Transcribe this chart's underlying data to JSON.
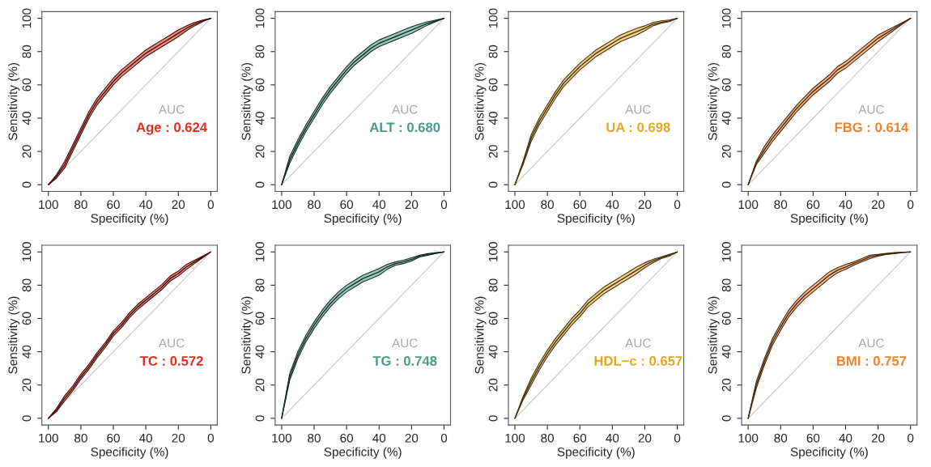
{
  "chart_data": [
    {
      "type": "line",
      "xlabel": "Specificity (%)",
      "ylabel": "Sensitivity (%)",
      "xlim": [
        104,
        -4
      ],
      "ylim": [
        -4,
        104
      ],
      "xticks": [
        100,
        80,
        60,
        40,
        20,
        0
      ],
      "yticks": [
        0,
        20,
        40,
        60,
        80,
        100
      ],
      "annotations": [
        "AUC",
        "Age : 0.624"
      ],
      "x": [
        100,
        95,
        90,
        85,
        80,
        75,
        70,
        65,
        60,
        55,
        50,
        45,
        40,
        35,
        30,
        25,
        20,
        15,
        10,
        5,
        0
      ],
      "series": [
        {
          "color": "#430e09",
          "values": [
            0,
            5,
            12,
            22,
            32,
            42,
            50,
            56,
            62,
            67,
            71,
            75,
            79,
            82,
            85,
            88,
            91,
            94,
            96.5,
            98.5,
            100
          ],
          "lower": [
            0,
            4,
            10,
            20,
            30,
            40,
            48,
            54,
            60,
            65,
            69,
            73,
            77,
            80,
            83,
            86,
            89,
            92.5,
            95.5,
            98,
            100
          ],
          "upper": [
            0,
            6,
            14,
            24,
            34,
            44,
            52,
            58,
            64,
            69,
            73,
            77,
            81,
            84,
            87,
            90,
            93,
            95.5,
            97.5,
            99,
            100
          ]
        },
        {
          "type": "line",
          "color": "#cccccc",
          "values": [
            0,
            5,
            10,
            15,
            20,
            25,
            30,
            35,
            40,
            45,
            50,
            55,
            60,
            65,
            70,
            75,
            80,
            85,
            90,
            95,
            100
          ]
        }
      ]
    },
    {
      "type": "line",
      "xlabel": "Specificity (%)",
      "ylabel": "Sensitivity (%)",
      "xlim": [
        104,
        -4
      ],
      "ylim": [
        -4,
        104
      ],
      "xticks": [
        100,
        80,
        60,
        40,
        20,
        0
      ],
      "yticks": [
        0,
        20,
        40,
        60,
        80,
        100
      ],
      "annotations": [
        "AUC",
        "ALT : 0.680"
      ],
      "x": [
        100,
        95,
        90,
        85,
        80,
        75,
        70,
        65,
        60,
        55,
        50,
        45,
        40,
        35,
        30,
        25,
        20,
        15,
        10,
        5,
        0
      ],
      "series": [
        {
          "color": "#162e29",
          "values": [
            0,
            15,
            25,
            34,
            42,
            50,
            57,
            63,
            69,
            74,
            78,
            82,
            85,
            87,
            89,
            91,
            93,
            95,
            97,
            98.5,
            100
          ],
          "lower": [
            0,
            13,
            23,
            32,
            40,
            48,
            55,
            61,
            67,
            72,
            76,
            80,
            83,
            85,
            87,
            89,
            91,
            93.5,
            96,
            98,
            100
          ],
          "upper": [
            0,
            17,
            27,
            36,
            44,
            52,
            59,
            65,
            71,
            76,
            80,
            84,
            87,
            89,
            91,
            93,
            95,
            96.5,
            98,
            99,
            100
          ]
        },
        {
          "type": "line",
          "color": "#cccccc",
          "values": [
            0,
            5,
            10,
            15,
            20,
            25,
            30,
            35,
            40,
            45,
            50,
            55,
            60,
            65,
            70,
            75,
            80,
            85,
            90,
            95,
            100
          ]
        }
      ]
    },
    {
      "type": "line",
      "xlabel": "Specificity (%)",
      "ylabel": "Sensitivity (%)",
      "xlim": [
        104,
        -4
      ],
      "ylim": [
        -4,
        104
      ],
      "xticks": [
        100,
        80,
        60,
        40,
        20,
        0
      ],
      "yticks": [
        0,
        20,
        40,
        60,
        80,
        100
      ],
      "annotations": [
        "AUC",
        "UA : 0.698"
      ],
      "x": [
        100,
        95,
        90,
        85,
        80,
        75,
        70,
        65,
        60,
        55,
        50,
        45,
        40,
        35,
        30,
        25,
        20,
        15,
        10,
        5,
        0
      ],
      "series": [
        {
          "color": "#44320b",
          "values": [
            0,
            13,
            28,
            38,
            46,
            54,
            61,
            66,
            71,
            75,
            79,
            82,
            85,
            88,
            90,
            92,
            94,
            96.5,
            97.5,
            98.5,
            100
          ],
          "lower": [
            0,
            12,
            26,
            36,
            44,
            52,
            59,
            64,
            69,
            73,
            77,
            80,
            83,
            86,
            88,
            90,
            92.5,
            95.5,
            97,
            98,
            100
          ],
          "upper": [
            0,
            14,
            30,
            40,
            48,
            56,
            63,
            68,
            73,
            77,
            81,
            84,
            87,
            90,
            92,
            94,
            95.5,
            97.5,
            98.5,
            99,
            100
          ]
        },
        {
          "type": "line",
          "color": "#cccccc",
          "values": [
            0,
            5,
            10,
            15,
            20,
            25,
            30,
            35,
            40,
            45,
            50,
            55,
            60,
            65,
            70,
            75,
            80,
            85,
            90,
            95,
            100
          ]
        }
      ]
    },
    {
      "type": "line",
      "xlabel": "Specificity (%)",
      "ylabel": "Sensitivity (%)",
      "xlim": [
        104,
        -4
      ],
      "ylim": [
        -4,
        104
      ],
      "xticks": [
        100,
        80,
        60,
        40,
        20,
        0
      ],
      "yticks": [
        0,
        20,
        40,
        60,
        80,
        100
      ],
      "annotations": [
        "AUC",
        "FBG : 0.614"
      ],
      "x": [
        100,
        95,
        90,
        85,
        80,
        75,
        70,
        65,
        60,
        55,
        50,
        45,
        40,
        35,
        30,
        25,
        20,
        15,
        10,
        5,
        0
      ],
      "series": [
        {
          "color": "#48270d",
          "values": [
            0,
            13,
            21,
            28,
            34,
            40,
            46,
            51,
            56,
            60,
            64,
            69,
            72,
            76,
            80,
            84,
            88,
            91,
            94,
            97,
            100
          ],
          "lower": [
            0,
            12,
            19,
            26,
            32,
            38,
            44,
            49,
            54,
            58,
            62,
            67,
            70,
            74,
            78,
            82,
            86,
            89.5,
            93,
            96.5,
            100
          ],
          "upper": [
            0,
            14,
            23,
            30,
            36,
            42,
            48,
            53,
            58,
            62,
            66,
            71,
            74,
            78,
            82,
            86,
            90,
            92.5,
            95,
            97.5,
            100
          ]
        },
        {
          "type": "line",
          "color": "#cccccc",
          "values": [
            0,
            5,
            10,
            15,
            20,
            25,
            30,
            35,
            40,
            45,
            50,
            55,
            60,
            65,
            70,
            75,
            80,
            85,
            90,
            95,
            100
          ]
        }
      ]
    },
    {
      "type": "line",
      "xlabel": "Specificity (%)",
      "ylabel": "Sensitivity (%)",
      "xlim": [
        104,
        -4
      ],
      "ylim": [
        -4,
        104
      ],
      "xticks": [
        100,
        80,
        60,
        40,
        20,
        0
      ],
      "yticks": [
        0,
        20,
        40,
        60,
        80,
        100
      ],
      "annotations": [
        "AUC",
        "TC : 0.572"
      ],
      "x": [
        100,
        95,
        90,
        85,
        80,
        75,
        70,
        65,
        60,
        55,
        50,
        45,
        40,
        35,
        30,
        25,
        20,
        15,
        10,
        5,
        0
      ],
      "series": [
        {
          "color": "#430e09",
          "values": [
            0,
            5,
            12,
            18,
            25,
            31,
            38,
            44,
            51,
            56,
            62,
            67,
            71,
            75,
            79,
            84,
            87,
            91,
            94,
            97,
            100
          ],
          "lower": [
            0,
            4,
            10.5,
            16.5,
            23.5,
            29.5,
            36.5,
            42.5,
            49.5,
            54.5,
            60.5,
            65.5,
            69.5,
            73.5,
            77.5,
            82.5,
            85.5,
            89.5,
            93,
            96.5,
            100
          ],
          "upper": [
            0,
            6,
            13.5,
            19.5,
            26.5,
            32.5,
            39.5,
            45.5,
            52.5,
            57.5,
            63.5,
            68.5,
            72.5,
            76.5,
            80.5,
            85.5,
            88.5,
            92.5,
            95,
            97.5,
            100
          ]
        },
        {
          "type": "line",
          "color": "#cccccc",
          "values": [
            0,
            5,
            10,
            15,
            20,
            25,
            30,
            35,
            40,
            45,
            50,
            55,
            60,
            65,
            70,
            75,
            80,
            85,
            90,
            95,
            100
          ]
        }
      ]
    },
    {
      "type": "line",
      "xlabel": "Specificity (%)",
      "ylabel": "Sensitivity (%)",
      "xlim": [
        104,
        -4
      ],
      "ylim": [
        -4,
        104
      ],
      "xticks": [
        100,
        80,
        60,
        40,
        20,
        0
      ],
      "yticks": [
        0,
        20,
        40,
        60,
        80,
        100
      ],
      "annotations": [
        "AUC",
        "TG : 0.748"
      ],
      "x": [
        100,
        95,
        90,
        85,
        80,
        75,
        70,
        65,
        60,
        55,
        50,
        45,
        40,
        35,
        30,
        25,
        20,
        15,
        10,
        5,
        0
      ],
      "series": [
        {
          "color": "#162e29",
          "values": [
            0,
            25,
            38,
            48,
            56,
            63,
            69,
            74,
            78,
            81,
            84,
            86,
            88,
            91,
            93,
            94,
            95.5,
            97.5,
            98.5,
            99.3,
            100
          ],
          "lower": [
            0,
            23,
            36,
            46,
            54,
            61,
            67,
            72,
            76,
            79,
            82,
            84,
            86,
            89.5,
            92,
            93,
            94.5,
            97,
            98,
            99,
            100
          ],
          "upper": [
            0,
            27,
            40,
            50,
            58,
            65,
            71,
            76,
            80,
            83,
            86,
            88,
            90,
            92.5,
            94,
            95,
            96.5,
            98,
            99,
            99.6,
            100
          ]
        },
        {
          "type": "line",
          "color": "#cccccc",
          "values": [
            0,
            5,
            10,
            15,
            20,
            25,
            30,
            35,
            40,
            45,
            50,
            55,
            60,
            65,
            70,
            75,
            80,
            85,
            90,
            95,
            100
          ]
        }
      ]
    },
    {
      "type": "line",
      "xlabel": "Specificity (%)",
      "ylabel": "Sensitivity (%)",
      "xlim": [
        104,
        -4
      ],
      "ylim": [
        -4,
        104
      ],
      "xticks": [
        100,
        80,
        60,
        40,
        20,
        0
      ],
      "yticks": [
        0,
        20,
        40,
        60,
        80,
        100
      ],
      "annotations": [
        "AUC",
        "HDL−c : 0.657"
      ],
      "x": [
        100,
        95,
        90,
        85,
        80,
        75,
        70,
        65,
        60,
        55,
        50,
        45,
        40,
        35,
        30,
        25,
        20,
        15,
        10,
        5,
        0
      ],
      "series": [
        {
          "color": "#44320b",
          "values": [
            0,
            12,
            22,
            31,
            39,
            46,
            52,
            58,
            63,
            69,
            73,
            77,
            80,
            83,
            86,
            89,
            92,
            94.5,
            96.5,
            98,
            100
          ],
          "lower": [
            0,
            11,
            20,
            29,
            37,
            44,
            50,
            56,
            61,
            67,
            71,
            75,
            78,
            81,
            84,
            87,
            90.5,
            93.5,
            96,
            97.5,
            100
          ],
          "upper": [
            0,
            13,
            24,
            33,
            41,
            48,
            54,
            60,
            65,
            71,
            75,
            79,
            82,
            85,
            88,
            91,
            93.5,
            95.5,
            97,
            98.5,
            100
          ]
        },
        {
          "type": "line",
          "color": "#cccccc",
          "values": [
            0,
            5,
            10,
            15,
            20,
            25,
            30,
            35,
            40,
            45,
            50,
            55,
            60,
            65,
            70,
            75,
            80,
            85,
            90,
            95,
            100
          ]
        }
      ]
    },
    {
      "type": "line",
      "xlabel": "Specificity (%)",
      "ylabel": "Sensitivity (%)",
      "xlim": [
        104,
        -4
      ],
      "ylim": [
        -4,
        104
      ],
      "xticks": [
        100,
        80,
        60,
        40,
        20,
        0
      ],
      "yticks": [
        0,
        20,
        40,
        60,
        80,
        100
      ],
      "annotations": [
        "AUC",
        "BMI : 0.757"
      ],
      "x": [
        100,
        95,
        90,
        85,
        80,
        75,
        70,
        65,
        60,
        55,
        50,
        45,
        40,
        35,
        30,
        25,
        20,
        15,
        10,
        5,
        0
      ],
      "series": [
        {
          "color": "#48270d",
          "values": [
            0,
            20,
            34,
            46,
            55,
            63,
            69,
            74,
            78,
            82,
            86,
            89,
            91,
            93,
            95,
            97,
            98,
            98.8,
            99.3,
            99.7,
            100
          ],
          "lower": [
            0,
            18,
            32,
            44,
            53,
            61,
            67,
            72,
            76,
            80,
            84,
            87.5,
            89.5,
            92,
            94,
            96,
            97.5,
            98.5,
            99,
            99.5,
            100
          ],
          "upper": [
            0,
            22,
            36,
            48,
            57,
            65,
            71,
            76,
            80,
            84,
            88,
            90.5,
            92.5,
            94,
            96,
            98,
            98.5,
            99.1,
            99.6,
            99.9,
            100
          ]
        },
        {
          "type": "line",
          "color": "#cccccc",
          "values": [
            0,
            5,
            10,
            15,
            20,
            25,
            30,
            35,
            40,
            45,
            50,
            55,
            60,
            65,
            70,
            75,
            80,
            85,
            90,
            95,
            100
          ]
        }
      ]
    }
  ]
}
